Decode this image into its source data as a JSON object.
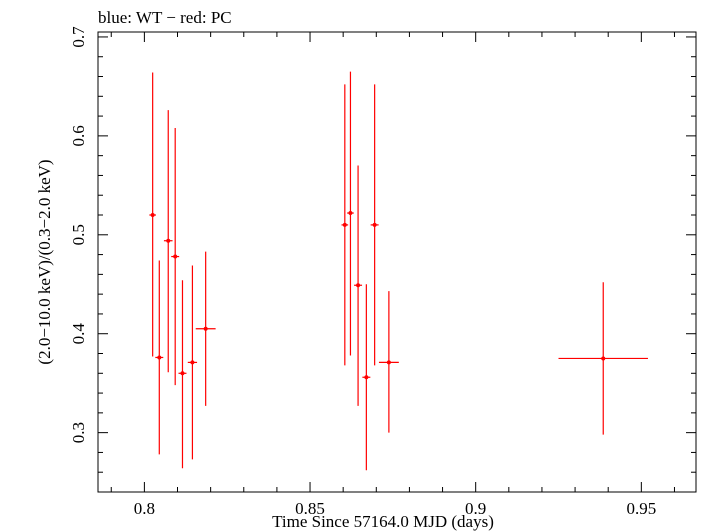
{
  "chart_data": {
    "type": "scatter",
    "title": "blue: WT − red: PC",
    "xlabel": "Time Since 57164.0 MJD (days)",
    "ylabel": "(2.0−10.0 keV)/(0.3−2.0 keV)",
    "xlim": [
      0.786,
      0.9665
    ],
    "ylim": [
      0.24,
      0.705
    ],
    "x_ticks": [
      0.8,
      0.85,
      0.9,
      0.95
    ],
    "x_tick_labels": [
      "0.8",
      "0.85",
      "0.9",
      "0.95"
    ],
    "y_ticks": [
      0.3,
      0.4,
      0.5,
      0.6,
      0.7
    ],
    "y_tick_labels": [
      "0.3",
      "0.4",
      "0.5",
      "0.6",
      "0.7"
    ],
    "grid": false,
    "series": [
      {
        "color": "#ff0000",
        "points": [
          {
            "x": 0.8025,
            "xerr": 0.001,
            "y": 0.52,
            "ylo": 0.377,
            "yhi": 0.664
          },
          {
            "x": 0.8045,
            "xerr": 0.0012,
            "y": 0.376,
            "ylo": 0.278,
            "yhi": 0.474
          },
          {
            "x": 0.8072,
            "xerr": 0.0013,
            "y": 0.494,
            "ylo": 0.361,
            "yhi": 0.626
          },
          {
            "x": 0.8093,
            "xerr": 0.0012,
            "y": 0.478,
            "ylo": 0.348,
            "yhi": 0.608
          },
          {
            "x": 0.8115,
            "xerr": 0.0012,
            "y": 0.36,
            "ylo": 0.264,
            "yhi": 0.454
          },
          {
            "x": 0.8145,
            "xerr": 0.0014,
            "y": 0.371,
            "ylo": 0.273,
            "yhi": 0.469
          },
          {
            "x": 0.8185,
            "xerr": 0.003,
            "y": 0.405,
            "ylo": 0.327,
            "yhi": 0.483
          },
          {
            "x": 0.8605,
            "xerr": 0.001,
            "y": 0.51,
            "ylo": 0.368,
            "yhi": 0.652
          },
          {
            "x": 0.8622,
            "xerr": 0.001,
            "y": 0.522,
            "ylo": 0.378,
            "yhi": 0.665
          },
          {
            "x": 0.8645,
            "xerr": 0.0012,
            "y": 0.449,
            "ylo": 0.327,
            "yhi": 0.57
          },
          {
            "x": 0.867,
            "xerr": 0.0012,
            "y": 0.356,
            "ylo": 0.262,
            "yhi": 0.45
          },
          {
            "x": 0.8695,
            "xerr": 0.0012,
            "y": 0.51,
            "ylo": 0.368,
            "yhi": 0.652
          },
          {
            "x": 0.8738,
            "xerr": 0.003,
            "y": 0.371,
            "ylo": 0.3,
            "yhi": 0.443
          },
          {
            "x": 0.9385,
            "xerr": 0.0135,
            "y": 0.375,
            "ylo": 0.298,
            "yhi": 0.452
          }
        ]
      }
    ]
  }
}
